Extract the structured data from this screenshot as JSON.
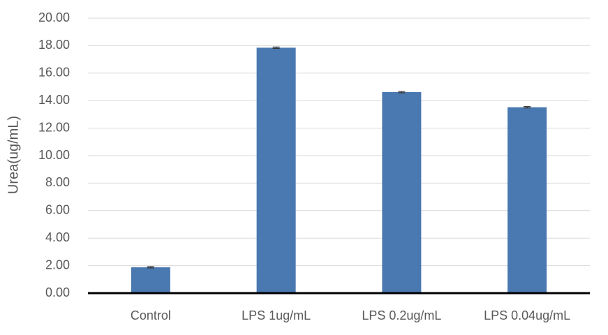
{
  "chart_data": {
    "type": "bar",
    "y_label": "Urea(ug/mL)",
    "categories": [
      "Control",
      "LPS 1ug/mL",
      "LPS 0.2ug/mL",
      "LPS 0.04ug/mL"
    ],
    "values": [
      1.88,
      17.85,
      14.62,
      13.52
    ],
    "errors": [
      0.05,
      0.05,
      0.05,
      0.05
    ],
    "color": "#4a78b0",
    "ylim": [
      0,
      20
    ],
    "yticks": [
      {
        "value": 0,
        "label": "0.00"
      },
      {
        "value": 2,
        "label": "2.00"
      },
      {
        "value": 4,
        "label": "4.00"
      },
      {
        "value": 6,
        "label": "6.00"
      },
      {
        "value": 8,
        "label": "8.00"
      },
      {
        "value": 10,
        "label": "10.00"
      },
      {
        "value": 12,
        "label": "12.00"
      },
      {
        "value": 14,
        "label": "14.00"
      },
      {
        "value": 16,
        "label": "16.00"
      },
      {
        "value": 18,
        "label": "18.00"
      },
      {
        "value": 20,
        "label": "20.00"
      }
    ],
    "grid": true
  }
}
